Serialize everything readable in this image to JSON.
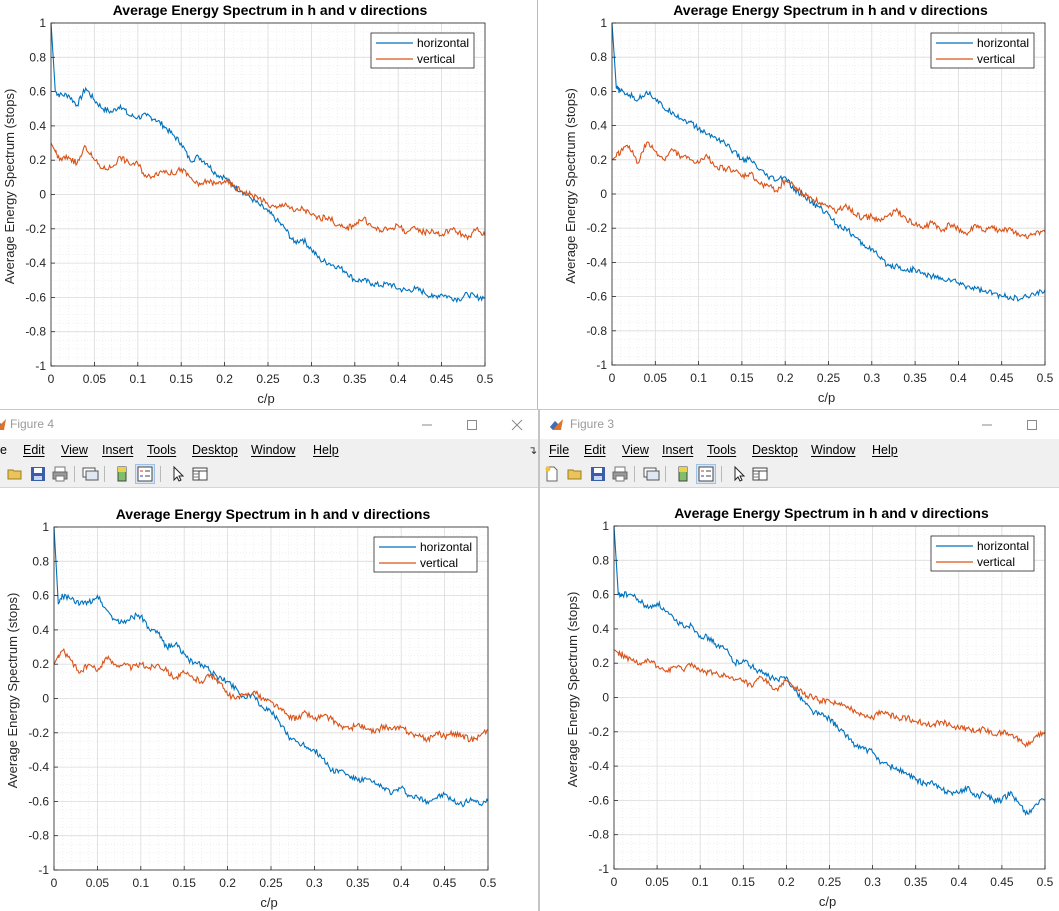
{
  "windows": [
    {
      "id": "tl",
      "title": "",
      "has_chrome": false
    },
    {
      "id": "tr",
      "title": "",
      "has_chrome": false
    },
    {
      "id": "bl",
      "title": "Figure 4",
      "has_chrome": true,
      "truncated_menu_first": "e"
    },
    {
      "id": "br",
      "title": "Figure 3",
      "has_chrome": true
    }
  ],
  "menu": [
    "File",
    "Edit",
    "View",
    "Insert",
    "Tools",
    "Desktop",
    "Window",
    "Help"
  ],
  "toolbar_icons": [
    "new-figure-icon",
    "open-icon",
    "save-icon",
    "print-icon",
    "link-plot-icon",
    "colorbar-icon",
    "legend-icon",
    "pointer-icon",
    "property-inspector-icon"
  ],
  "colors": {
    "horizontal": "#0072bd",
    "vertical": "#d95319",
    "grid": "#e3e3e3",
    "axis": "#262626"
  },
  "chart_data": [
    {
      "type": "line",
      "title": "Average Energy Spectrum in h and v directions",
      "xlabel": "c/p",
      "ylabel": "Average Energy Spectrum (stops)",
      "xlim": [
        0,
        0.5
      ],
      "ylim": [
        -1,
        1
      ],
      "xticks": [
        "0",
        "0.05",
        "0.1",
        "0.15",
        "0.2",
        "0.25",
        "0.3",
        "0.35",
        "0.4",
        "0.45",
        "0.5"
      ],
      "yticks": [
        "1",
        "0.8",
        "0.6",
        "0.4",
        "0.2",
        "0",
        "-0.2",
        "-0.4",
        "-0.6",
        "-0.8",
        "-1"
      ],
      "grid": true,
      "minor_grid": true,
      "legend": "top-right",
      "x": [
        0,
        0.005,
        0.01,
        0.02,
        0.03,
        0.04,
        0.05,
        0.06,
        0.07,
        0.08,
        0.09,
        0.1,
        0.11,
        0.12,
        0.13,
        0.14,
        0.15,
        0.16,
        0.17,
        0.18,
        0.19,
        0.2,
        0.21,
        0.22,
        0.23,
        0.24,
        0.25,
        0.26,
        0.27,
        0.28,
        0.29,
        0.3,
        0.31,
        0.32,
        0.33,
        0.34,
        0.35,
        0.36,
        0.37,
        0.38,
        0.39,
        0.4,
        0.41,
        0.42,
        0.43,
        0.44,
        0.45,
        0.46,
        0.47,
        0.48,
        0.49,
        0.5
      ],
      "series": [
        {
          "name": "horizontal",
          "values": [
            1,
            0.6,
            0.58,
            0.58,
            0.52,
            0.62,
            0.55,
            0.5,
            0.48,
            0.52,
            0.46,
            0.45,
            0.46,
            0.44,
            0.4,
            0.35,
            0.3,
            0.2,
            0.22,
            0.18,
            0.12,
            0.1,
            0.05,
            0.02,
            -0.02,
            -0.06,
            -0.1,
            -0.15,
            -0.2,
            -0.28,
            -0.26,
            -0.32,
            -0.38,
            -0.4,
            -0.42,
            -0.45,
            -0.5,
            -0.5,
            -0.52,
            -0.53,
            -0.52,
            -0.55,
            -0.56,
            -0.55,
            -0.57,
            -0.6,
            -0.58,
            -0.6,
            -0.61,
            -0.58,
            -0.6,
            -0.6
          ]
        },
        {
          "name": "vertical",
          "values": [
            0.3,
            0.25,
            0.2,
            0.22,
            0.18,
            0.28,
            0.2,
            0.15,
            0.16,
            0.22,
            0.18,
            0.18,
            0.1,
            0.12,
            0.14,
            0.12,
            0.15,
            0.1,
            0.05,
            0.08,
            0.06,
            0.08,
            0.05,
            0.02,
            0.0,
            -0.02,
            -0.06,
            -0.08,
            -0.05,
            -0.1,
            -0.08,
            -0.12,
            -0.14,
            -0.13,
            -0.18,
            -0.2,
            -0.17,
            -0.14,
            -0.19,
            -0.21,
            -0.2,
            -0.18,
            -0.22,
            -0.2,
            -0.22,
            -0.21,
            -0.24,
            -0.2,
            -0.22,
            -0.26,
            -0.2,
            -0.24
          ]
        }
      ]
    },
    {
      "type": "line",
      "title": "Average Energy Spectrum in h and v directions",
      "xlabel": "c/p",
      "ylabel": "Average Energy Spectrum (stops)",
      "xlim": [
        0,
        0.5
      ],
      "ylim": [
        -1,
        1
      ],
      "xticks": [
        "0",
        "0.05",
        "0.1",
        "0.15",
        "0.2",
        "0.25",
        "0.3",
        "0.35",
        "0.4",
        "0.45",
        "0.5"
      ],
      "yticks": [
        "1",
        "0.8",
        "0.6",
        "0.4",
        "0.2",
        "0",
        "-0.2",
        "-0.4",
        "-0.6",
        "-0.8",
        "-1"
      ],
      "grid": true,
      "minor_grid": true,
      "legend": "top-right",
      "x": [
        0,
        0.005,
        0.01,
        0.02,
        0.03,
        0.04,
        0.05,
        0.06,
        0.07,
        0.08,
        0.09,
        0.1,
        0.11,
        0.12,
        0.13,
        0.14,
        0.15,
        0.16,
        0.17,
        0.18,
        0.19,
        0.2,
        0.21,
        0.22,
        0.23,
        0.24,
        0.25,
        0.26,
        0.27,
        0.28,
        0.29,
        0.3,
        0.31,
        0.32,
        0.33,
        0.34,
        0.35,
        0.36,
        0.37,
        0.38,
        0.39,
        0.4,
        0.41,
        0.42,
        0.43,
        0.44,
        0.45,
        0.46,
        0.47,
        0.48,
        0.49,
        0.5
      ],
      "series": [
        {
          "name": "horizontal",
          "values": [
            1,
            0.62,
            0.6,
            0.58,
            0.55,
            0.6,
            0.56,
            0.5,
            0.48,
            0.44,
            0.42,
            0.38,
            0.35,
            0.33,
            0.3,
            0.25,
            0.2,
            0.2,
            0.14,
            0.1,
            0.08,
            0.1,
            0.02,
            0.0,
            -0.05,
            -0.08,
            -0.12,
            -0.18,
            -0.2,
            -0.25,
            -0.3,
            -0.32,
            -0.38,
            -0.42,
            -0.42,
            -0.45,
            -0.44,
            -0.47,
            -0.48,
            -0.5,
            -0.5,
            -0.52,
            -0.54,
            -0.55,
            -0.57,
            -0.58,
            -0.6,
            -0.6,
            -0.62,
            -0.6,
            -0.58,
            -0.56
          ]
        },
        {
          "name": "vertical",
          "values": [
            0.2,
            0.22,
            0.25,
            0.28,
            0.18,
            0.3,
            0.25,
            0.2,
            0.26,
            0.22,
            0.2,
            0.18,
            0.22,
            0.16,
            0.15,
            0.14,
            0.1,
            0.12,
            0.06,
            0.05,
            0.02,
            0.08,
            0.05,
            0.0,
            -0.02,
            -0.05,
            -0.08,
            -0.1,
            -0.06,
            -0.12,
            -0.14,
            -0.13,
            -0.16,
            -0.12,
            -0.1,
            -0.15,
            -0.18,
            -0.2,
            -0.16,
            -0.22,
            -0.18,
            -0.2,
            -0.24,
            -0.18,
            -0.22,
            -0.2,
            -0.22,
            -0.2,
            -0.24,
            -0.26,
            -0.22,
            -0.22
          ]
        }
      ]
    },
    {
      "type": "line",
      "title": "Average Energy Spectrum in h and v directions",
      "xlabel": "c/p",
      "ylabel": "Average Energy Spectrum (stops)",
      "xlim": [
        0,
        0.5
      ],
      "ylim": [
        -1,
        1
      ],
      "xticks": [
        "0",
        "0.05",
        "0.1",
        "0.15",
        "0.2",
        "0.25",
        "0.3",
        "0.35",
        "0.4",
        "0.45",
        "0.5"
      ],
      "yticks": [
        "1",
        "0.8",
        "0.6",
        "0.4",
        "0.2",
        "0",
        "-0.2",
        "-0.4",
        "-0.6",
        "-0.8",
        "-1"
      ],
      "grid": true,
      "minor_grid": true,
      "legend": "top-right",
      "x": [
        0,
        0.005,
        0.01,
        0.02,
        0.03,
        0.04,
        0.05,
        0.06,
        0.07,
        0.08,
        0.09,
        0.1,
        0.11,
        0.12,
        0.13,
        0.14,
        0.15,
        0.16,
        0.17,
        0.18,
        0.19,
        0.2,
        0.21,
        0.22,
        0.23,
        0.24,
        0.25,
        0.26,
        0.27,
        0.28,
        0.29,
        0.3,
        0.31,
        0.32,
        0.33,
        0.34,
        0.35,
        0.36,
        0.37,
        0.38,
        0.39,
        0.4,
        0.41,
        0.42,
        0.43,
        0.44,
        0.45,
        0.46,
        0.47,
        0.48,
        0.49,
        0.5
      ],
      "series": [
        {
          "name": "horizontal",
          "values": [
            1,
            0.55,
            0.6,
            0.58,
            0.55,
            0.56,
            0.6,
            0.52,
            0.46,
            0.44,
            0.48,
            0.48,
            0.4,
            0.38,
            0.3,
            0.32,
            0.26,
            0.2,
            0.2,
            0.16,
            0.12,
            0.1,
            0.06,
            0.0,
            0.02,
            -0.05,
            -0.08,
            -0.14,
            -0.22,
            -0.25,
            -0.28,
            -0.3,
            -0.35,
            -0.42,
            -0.42,
            -0.45,
            -0.48,
            -0.47,
            -0.5,
            -0.52,
            -0.55,
            -0.52,
            -0.57,
            -0.58,
            -0.6,
            -0.58,
            -0.56,
            -0.6,
            -0.62,
            -0.58,
            -0.62,
            -0.6
          ]
        },
        {
          "name": "vertical",
          "values": [
            0.2,
            0.25,
            0.28,
            0.22,
            0.15,
            0.2,
            0.16,
            0.24,
            0.2,
            0.2,
            0.18,
            0.2,
            0.18,
            0.2,
            0.16,
            0.12,
            0.15,
            0.12,
            0.1,
            0.14,
            0.1,
            0.02,
            0.0,
            0.02,
            0.04,
            0.0,
            -0.02,
            -0.06,
            -0.1,
            -0.12,
            -0.08,
            -0.12,
            -0.1,
            -0.12,
            -0.16,
            -0.18,
            -0.15,
            -0.18,
            -0.2,
            -0.16,
            -0.18,
            -0.17,
            -0.2,
            -0.22,
            -0.24,
            -0.2,
            -0.22,
            -0.2,
            -0.22,
            -0.24,
            -0.22,
            -0.18
          ]
        }
      ]
    },
    {
      "type": "line",
      "title": "Average Energy Spectrum in h and v directions",
      "xlabel": "c/p",
      "ylabel": "Average Energy Spectrum (stops)",
      "xlim": [
        0,
        0.5
      ],
      "ylim": [
        -1,
        1
      ],
      "xticks": [
        "0",
        "0.05",
        "0.1",
        "0.15",
        "0.2",
        "0.25",
        "0.3",
        "0.35",
        "0.4",
        "0.45",
        "0.5"
      ],
      "yticks": [
        "1",
        "0.8",
        "0.6",
        "0.4",
        "0.2",
        "0",
        "-0.2",
        "-0.4",
        "-0.6",
        "-0.8",
        "-1"
      ],
      "grid": true,
      "minor_grid": true,
      "legend": "top-right",
      "x": [
        0,
        0.005,
        0.01,
        0.02,
        0.03,
        0.04,
        0.05,
        0.06,
        0.07,
        0.08,
        0.09,
        0.1,
        0.11,
        0.12,
        0.13,
        0.14,
        0.15,
        0.16,
        0.17,
        0.18,
        0.19,
        0.2,
        0.21,
        0.22,
        0.23,
        0.24,
        0.25,
        0.26,
        0.27,
        0.28,
        0.29,
        0.3,
        0.31,
        0.32,
        0.33,
        0.34,
        0.35,
        0.36,
        0.37,
        0.38,
        0.39,
        0.4,
        0.41,
        0.42,
        0.43,
        0.44,
        0.45,
        0.46,
        0.47,
        0.48,
        0.49,
        0.5
      ],
      "series": [
        {
          "name": "horizontal",
          "values": [
            1,
            0.6,
            0.6,
            0.6,
            0.56,
            0.52,
            0.55,
            0.5,
            0.45,
            0.42,
            0.42,
            0.36,
            0.35,
            0.3,
            0.28,
            0.2,
            0.22,
            0.18,
            0.15,
            0.12,
            0.1,
            0.12,
            0.04,
            -0.02,
            -0.08,
            -0.1,
            -0.12,
            -0.18,
            -0.22,
            -0.28,
            -0.3,
            -0.32,
            -0.38,
            -0.4,
            -0.42,
            -0.45,
            -0.48,
            -0.5,
            -0.5,
            -0.54,
            -0.55,
            -0.56,
            -0.52,
            -0.58,
            -0.56,
            -0.6,
            -0.6,
            -0.55,
            -0.62,
            -0.68,
            -0.62,
            -0.6
          ]
        },
        {
          "name": "vertical",
          "values": [
            0.28,
            0.26,
            0.25,
            0.22,
            0.2,
            0.22,
            0.18,
            0.15,
            0.18,
            0.16,
            0.2,
            0.15,
            0.15,
            0.14,
            0.12,
            0.1,
            0.1,
            0.06,
            0.12,
            0.08,
            0.04,
            0.1,
            0.06,
            0.02,
            0.0,
            -0.02,
            -0.02,
            -0.04,
            -0.06,
            -0.08,
            -0.1,
            -0.12,
            -0.08,
            -0.1,
            -0.12,
            -0.12,
            -0.14,
            -0.15,
            -0.16,
            -0.14,
            -0.16,
            -0.18,
            -0.18,
            -0.2,
            -0.18,
            -0.22,
            -0.2,
            -0.22,
            -0.24,
            -0.28,
            -0.22,
            -0.2
          ]
        }
      ]
    }
  ]
}
